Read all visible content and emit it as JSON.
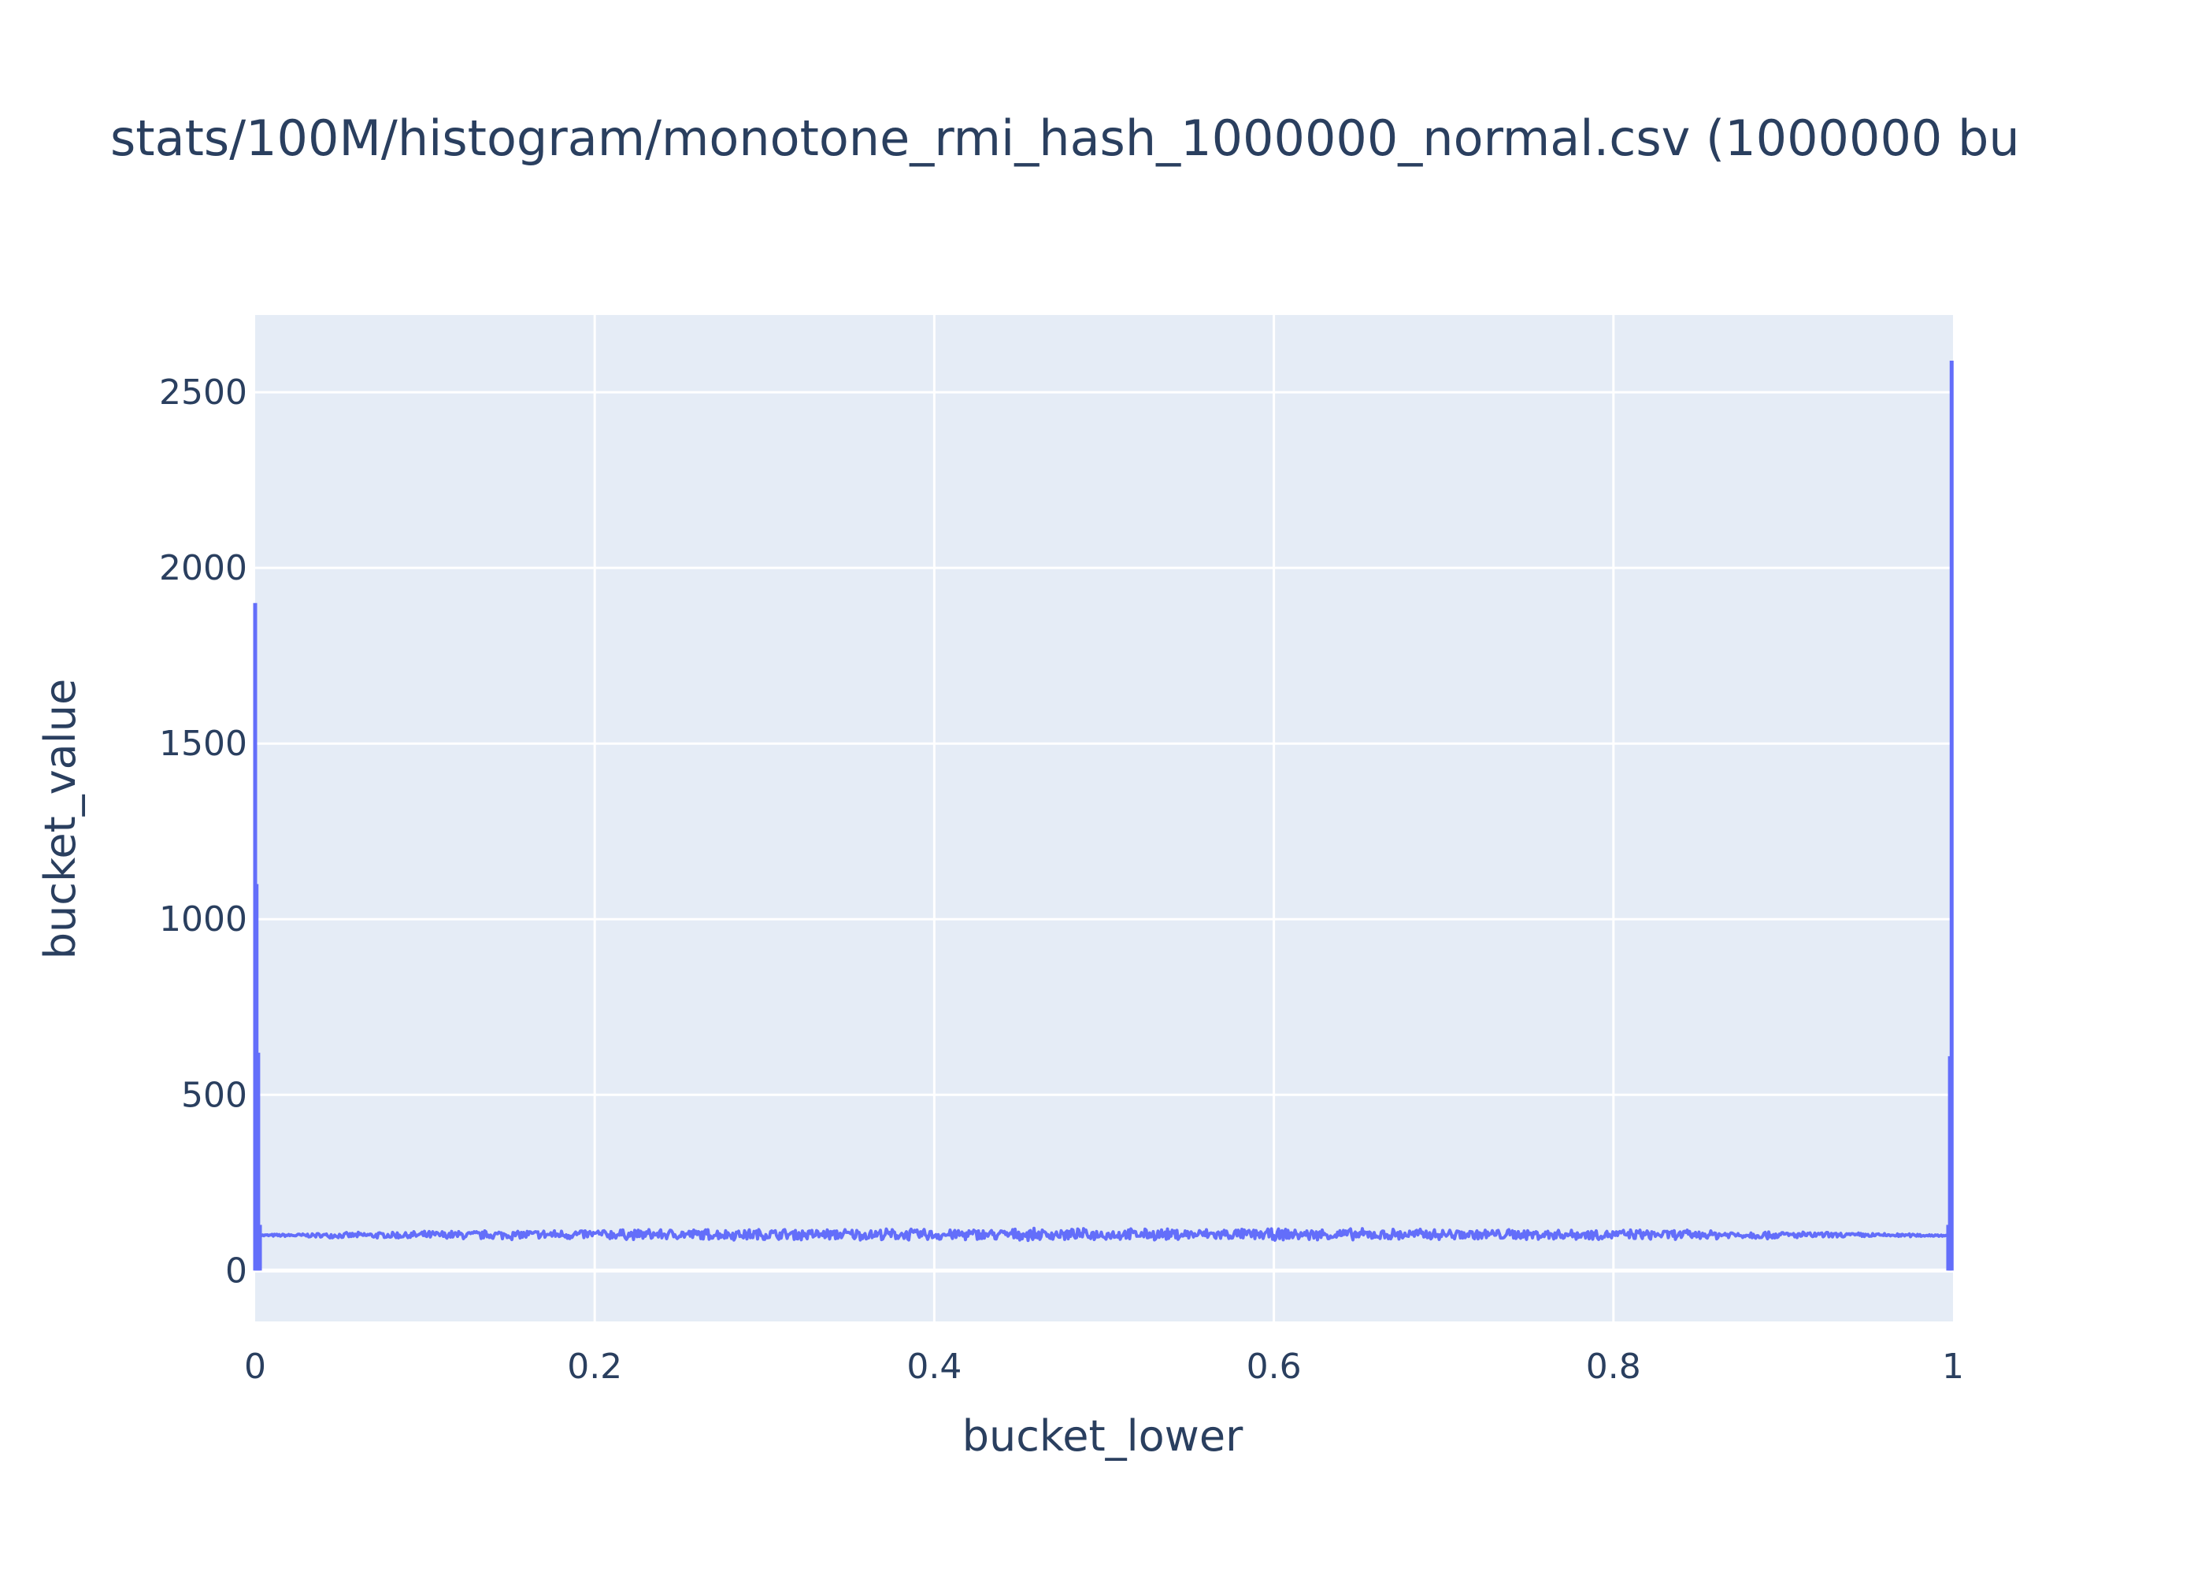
{
  "chart_data": {
    "type": "line",
    "title": "stats/100M/histogram/monotone_rmi_hash_1000000_normal.csv (1000000 bu",
    "xlabel": "bucket_lower",
    "ylabel": "bucket_value",
    "xlim": [
      0,
      1
    ],
    "ylim": [
      -145,
      2720
    ],
    "x_ticks": [
      0,
      0.2,
      0.4,
      0.6,
      0.8,
      1
    ],
    "x_tick_labels": [
      "0",
      "0.2",
      "0.4",
      "0.6",
      "0.8",
      "1"
    ],
    "y_ticks": [
      0,
      500,
      1000,
      1500,
      2000,
      2500
    ],
    "y_tick_labels": [
      "0",
      "500",
      "1000",
      "1500",
      "2000",
      "2500"
    ],
    "grid": true,
    "legend": "none",
    "line_color": "#636efa",
    "plot_bg": "#e5ecf6",
    "series": [
      {
        "band": {
          "x": [
            0.003,
            0.05,
            0.1,
            0.15,
            0.2,
            0.25,
            0.3,
            0.35,
            0.4,
            0.45,
            0.5,
            0.55,
            0.6,
            0.65,
            0.7,
            0.75,
            0.8,
            0.85,
            0.9,
            0.95,
            0.997
          ],
          "low": [
            97,
            92,
            88,
            87,
            87,
            86,
            85,
            85,
            84,
            85,
            85,
            85,
            85,
            84,
            85,
            86,
            87,
            88,
            90,
            94,
            97
          ],
          "high": [
            103,
            108,
            113,
            116,
            118,
            119,
            120,
            120,
            120,
            120,
            120,
            120,
            120,
            120,
            120,
            119,
            118,
            116,
            112,
            107,
            103
          ]
        },
        "spikes": [
          {
            "x": 0.0,
            "y": 1900
          },
          {
            "x": 0.0008,
            "y": 1100
          },
          {
            "x": 0.0018,
            "y": 620
          },
          {
            "x": 0.0028,
            "y": 130
          },
          {
            "x": 0.9972,
            "y": 130
          },
          {
            "x": 0.9982,
            "y": 610
          },
          {
            "x": 0.9992,
            "y": 2590
          }
        ]
      }
    ]
  }
}
